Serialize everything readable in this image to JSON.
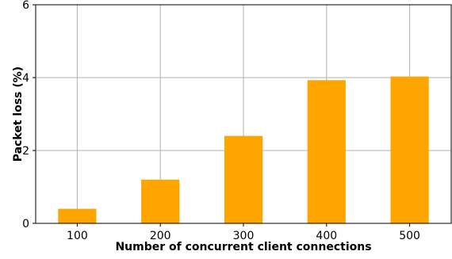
{
  "chart_data": {
    "type": "bar",
    "categories": [
      "100",
      "200",
      "300",
      "400",
      "500"
    ],
    "values": [
      0.4,
      1.2,
      2.4,
      3.93,
      4.03
    ],
    "xlabel": "Number of concurrent client connections",
    "ylabel": "Packet loss (%)",
    "ylim": [
      0,
      6
    ],
    "yticks": [
      "0",
      "2",
      "4",
      "6"
    ],
    "grid": true,
    "bar_color": "#FFA500"
  }
}
